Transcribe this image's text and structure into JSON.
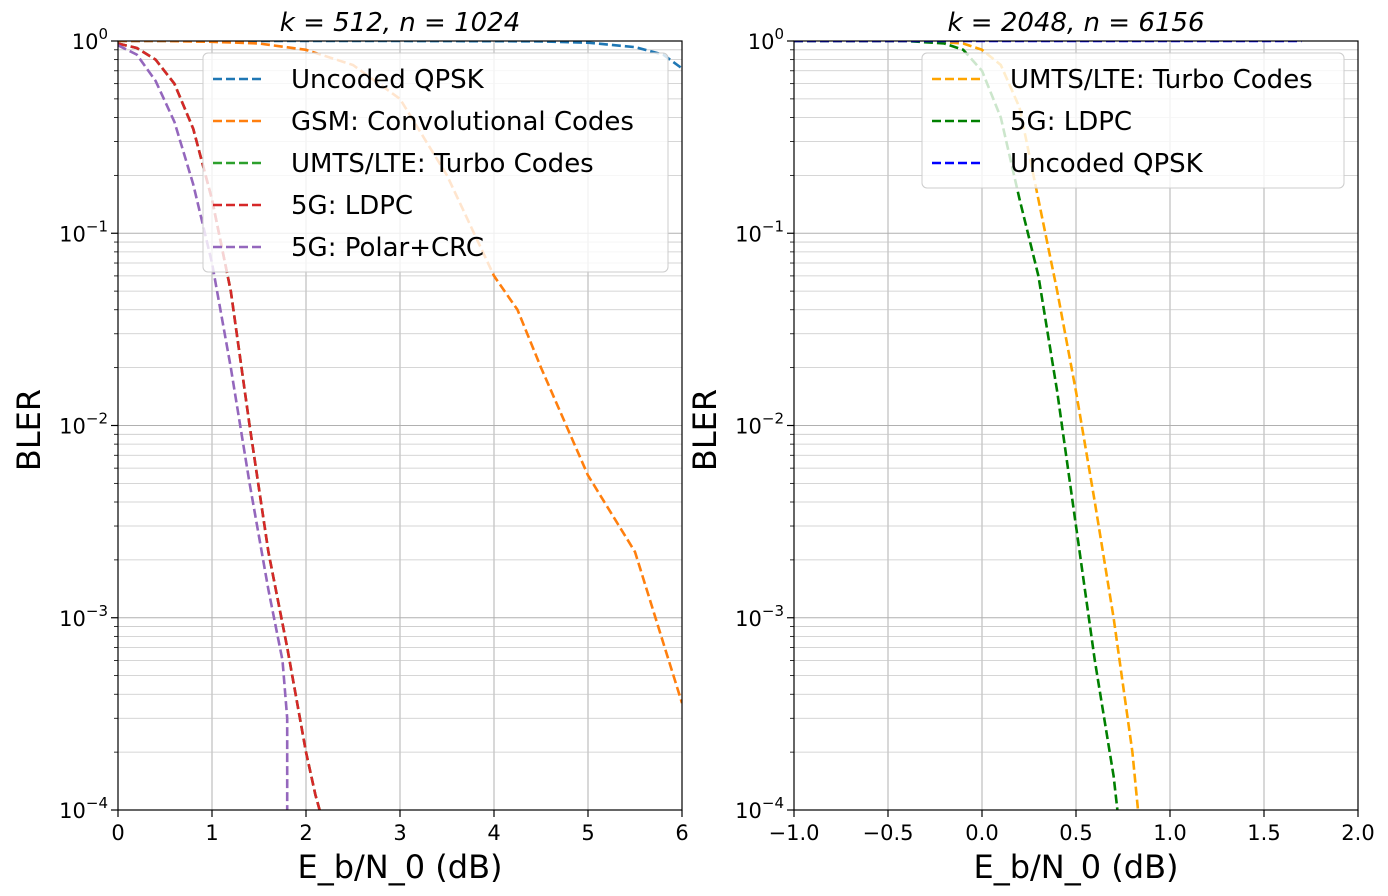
{
  "chart_data": [
    {
      "type": "line",
      "title": "k = 512, n = 1024",
      "xlabel": "E_b/N_0 (dB)",
      "ylabel": "BLER",
      "xlim": [
        0,
        6
      ],
      "ylim": [
        0.0001,
        1
      ],
      "yscale": "log",
      "grid": true,
      "legend_position": "top-right",
      "x_tick_labels": [
        "0",
        "1",
        "2",
        "3",
        "4",
        "5",
        "6"
      ],
      "y_tick_labels": [
        "10^-4",
        "10^-3",
        "10^-2",
        "10^-1",
        "10^0"
      ],
      "series": [
        {
          "name": "Uncoded QPSK",
          "color": "#1f77b4",
          "x": [
            0,
            1,
            2,
            3,
            4,
            4.5,
            5,
            5.5,
            5.8,
            6
          ],
          "y": [
            1,
            1,
            1,
            1,
            0.998,
            0.995,
            0.98,
            0.93,
            0.85,
            0.72
          ]
        },
        {
          "name": "GSM: Convolutional Codes",
          "color": "#ff7f0e",
          "x": [
            0,
            0.5,
            1,
            1.5,
            2,
            2.5,
            3,
            3.5,
            4,
            4.25,
            4.5,
            5,
            5.5,
            6
          ],
          "y": [
            1,
            1,
            0.99,
            0.97,
            0.9,
            0.75,
            0.5,
            0.2,
            0.06,
            0.04,
            0.02,
            0.0055,
            0.0022,
            0.00036
          ]
        },
        {
          "name": "UMTS/LTE: Turbo Codes",
          "color": "#2ca02c",
          "x": [
            0,
            0.2,
            0.4,
            0.6,
            0.8,
            1,
            1.2,
            1.4,
            1.6,
            1.8,
            2,
            2.1,
            2.2
          ],
          "y": [
            0.97,
            0.92,
            0.8,
            0.6,
            0.35,
            0.15,
            0.05,
            0.01,
            0.0022,
            0.0007,
            0.0002,
            0.00012,
            8e-05
          ]
        },
        {
          "name": "5G: LDPC",
          "color": "#d62728",
          "x": [
            0,
            0.2,
            0.4,
            0.6,
            0.8,
            1,
            1.2,
            1.4,
            1.6,
            1.8,
            2,
            2.1,
            2.2
          ],
          "y": [
            0.97,
            0.92,
            0.8,
            0.6,
            0.35,
            0.15,
            0.05,
            0.01,
            0.0022,
            0.0007,
            0.0002,
            0.00012,
            8e-05
          ]
        },
        {
          "name": "5G: Polar+CRC",
          "color": "#9467bd",
          "x": [
            0,
            0.2,
            0.4,
            0.6,
            0.8,
            1,
            1.2,
            1.4,
            1.6,
            1.75,
            1.8,
            1.8
          ],
          "y": [
            0.95,
            0.85,
            0.62,
            0.38,
            0.18,
            0.07,
            0.02,
            0.005,
            0.0014,
            0.0006,
            0.0003,
            0.0001
          ]
        }
      ]
    },
    {
      "type": "line",
      "title": "k = 2048, n = 6156",
      "xlabel": "E_b/N_0 (dB)",
      "ylabel": "BLER",
      "xlim": [
        -1,
        2
      ],
      "ylim": [
        0.0001,
        1
      ],
      "yscale": "log",
      "grid": true,
      "legend_position": "top-right",
      "x_tick_labels": [
        "−1.0",
        "−0.5",
        "0.0",
        "0.5",
        "1.0",
        "1.5",
        "2.0"
      ],
      "y_tick_labels": [
        "10^-4",
        "10^-3",
        "10^-2",
        "10^-1",
        "10^0"
      ],
      "series": [
        {
          "name": "UMTS/LTE: Turbo Codes",
          "color": "#ffa500",
          "x": [
            -1,
            -0.3,
            -0.1,
            0,
            0.1,
            0.2,
            0.3,
            0.4,
            0.5,
            0.6,
            0.7,
            0.8,
            0.83
          ],
          "y": [
            1,
            1,
            0.97,
            0.9,
            0.75,
            0.45,
            0.15,
            0.05,
            0.015,
            0.004,
            0.001,
            0.0002,
            0.0001
          ]
        },
        {
          "name": "5G: LDPC",
          "color": "#008000",
          "x": [
            -1,
            -0.4,
            -0.2,
            -0.1,
            0,
            0.1,
            0.2,
            0.3,
            0.4,
            0.5,
            0.6,
            0.7,
            0.72
          ],
          "y": [
            1,
            1,
            0.97,
            0.9,
            0.7,
            0.4,
            0.15,
            0.06,
            0.015,
            0.003,
            0.0006,
            0.00015,
            0.0001
          ]
        },
        {
          "name": "Uncoded QPSK",
          "color": "#0000ff",
          "x": [
            -1,
            0,
            1,
            1.7
          ],
          "y": [
            1,
            1,
            1,
            1
          ]
        }
      ]
    }
  ]
}
